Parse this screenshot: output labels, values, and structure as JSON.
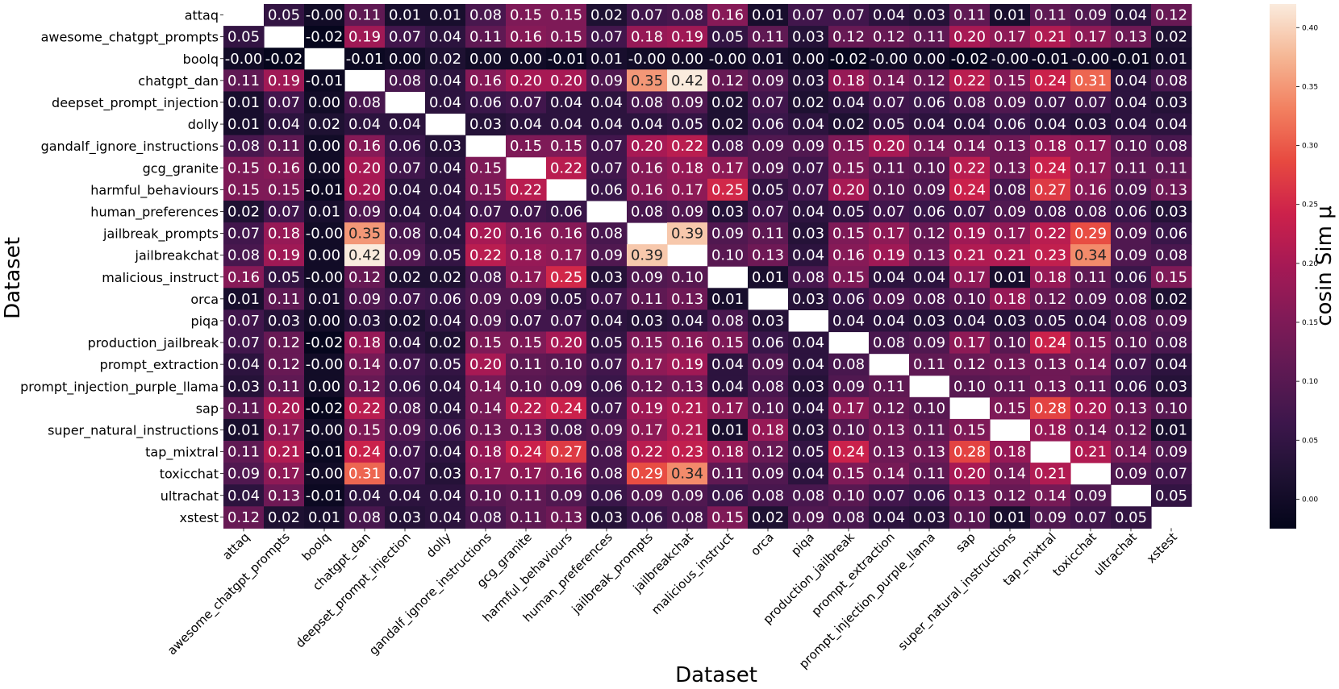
{
  "chart_data": {
    "type": "heatmap",
    "xlabel": "Dataset",
    "ylabel": "Dataset",
    "colorbar_label": "cosin Sim μ",
    "colorbar_range": [
      -0.025,
      0.42
    ],
    "colorbar_ticks": [
      "0.00",
      "0.05",
      "0.10",
      "0.15",
      "0.20",
      "0.25",
      "0.30",
      "0.35",
      "0.40"
    ],
    "colorbar_tick_values": [
      0.0,
      0.05,
      0.1,
      0.15,
      0.2,
      0.25,
      0.3,
      0.35,
      0.4
    ],
    "colormap": "rocket",
    "labels": [
      "attaq",
      "awesome_chatgpt_prompts",
      "boolq",
      "chatgpt_dan",
      "deepset_prompt_injection",
      "dolly",
      "gandalf_ignore_instructions",
      "gcg_granite",
      "harmful_behaviours",
      "human_preferences",
      "jailbreak_prompts",
      "jailbreakchat",
      "malicious_instruct",
      "orca",
      "piqa",
      "production_jailbreak",
      "prompt_extraction",
      "prompt_injection_purple_llama",
      "sap",
      "super_natural_instructions",
      "tap_mixtral",
      "toxicchat",
      "ultrachat",
      "xstest"
    ],
    "matrix": [
      [
        "",
        "0.05",
        "-0.00",
        "0.11",
        "0.01",
        "0.01",
        "0.08",
        "0.15",
        "0.15",
        "0.02",
        "0.07",
        "0.08",
        "0.16",
        "0.01",
        "0.07",
        "0.07",
        "0.04",
        "0.03",
        "0.11",
        "0.01",
        "0.11",
        "0.09",
        "0.04",
        "0.12"
      ],
      [
        "0.05",
        "",
        "-0.02",
        "0.19",
        "0.07",
        "0.04",
        "0.11",
        "0.16",
        "0.15",
        "0.07",
        "0.18",
        "0.19",
        "0.05",
        "0.11",
        "0.03",
        "0.12",
        "0.12",
        "0.11",
        "0.20",
        "0.17",
        "0.21",
        "0.17",
        "0.13",
        "0.02"
      ],
      [
        "-0.00",
        "-0.02",
        "",
        "-0.01",
        "0.00",
        "0.02",
        "0.00",
        "0.00",
        "-0.01",
        "0.01",
        "-0.00",
        "0.00",
        "-0.00",
        "0.01",
        "0.00",
        "-0.02",
        "-0.00",
        "0.00",
        "-0.02",
        "-0.00",
        "-0.01",
        "-0.00",
        "-0.01",
        "0.01"
      ],
      [
        "0.11",
        "0.19",
        "-0.01",
        "",
        "0.08",
        "0.04",
        "0.16",
        "0.20",
        "0.20",
        "0.09",
        "0.35",
        "0.42",
        "0.12",
        "0.09",
        "0.03",
        "0.18",
        "0.14",
        "0.12",
        "0.22",
        "0.15",
        "0.24",
        "0.31",
        "0.04",
        "0.08"
      ],
      [
        "0.01",
        "0.07",
        "0.00",
        "0.08",
        "",
        "0.04",
        "0.06",
        "0.07",
        "0.04",
        "0.04",
        "0.08",
        "0.09",
        "0.02",
        "0.07",
        "0.02",
        "0.04",
        "0.07",
        "0.06",
        "0.08",
        "0.09",
        "0.07",
        "0.07",
        "0.04",
        "0.03"
      ],
      [
        "0.01",
        "0.04",
        "0.02",
        "0.04",
        "0.04",
        "",
        "0.03",
        "0.04",
        "0.04",
        "0.04",
        "0.04",
        "0.05",
        "0.02",
        "0.06",
        "0.04",
        "0.02",
        "0.05",
        "0.04",
        "0.04",
        "0.06",
        "0.04",
        "0.03",
        "0.04",
        "0.04"
      ],
      [
        "0.08",
        "0.11",
        "0.00",
        "0.16",
        "0.06",
        "0.03",
        "",
        "0.15",
        "0.15",
        "0.07",
        "0.20",
        "0.22",
        "0.08",
        "0.09",
        "0.09",
        "0.15",
        "0.20",
        "0.14",
        "0.14",
        "0.13",
        "0.18",
        "0.17",
        "0.10",
        "0.08"
      ],
      [
        "0.15",
        "0.16",
        "0.00",
        "0.20",
        "0.07",
        "0.04",
        "0.15",
        "",
        "0.22",
        "0.07",
        "0.16",
        "0.18",
        "0.17",
        "0.09",
        "0.07",
        "0.15",
        "0.11",
        "0.10",
        "0.22",
        "0.13",
        "0.24",
        "0.17",
        "0.11",
        "0.11"
      ],
      [
        "0.15",
        "0.15",
        "-0.01",
        "0.20",
        "0.04",
        "0.04",
        "0.15",
        "0.22",
        "",
        "0.06",
        "0.16",
        "0.17",
        "0.25",
        "0.05",
        "0.07",
        "0.20",
        "0.10",
        "0.09",
        "0.24",
        "0.08",
        "0.27",
        "0.16",
        "0.09",
        "0.13"
      ],
      [
        "0.02",
        "0.07",
        "0.01",
        "0.09",
        "0.04",
        "0.04",
        "0.07",
        "0.07",
        "0.06",
        "",
        "0.08",
        "0.09",
        "0.03",
        "0.07",
        "0.04",
        "0.05",
        "0.07",
        "0.06",
        "0.07",
        "0.09",
        "0.08",
        "0.08",
        "0.06",
        "0.03"
      ],
      [
        "0.07",
        "0.18",
        "-0.00",
        "0.35",
        "0.08",
        "0.04",
        "0.20",
        "0.16",
        "0.16",
        "0.08",
        "",
        "0.39",
        "0.09",
        "0.11",
        "0.03",
        "0.15",
        "0.17",
        "0.12",
        "0.19",
        "0.17",
        "0.22",
        "0.29",
        "0.09",
        "0.06"
      ],
      [
        "0.08",
        "0.19",
        "0.00",
        "0.42",
        "0.09",
        "0.05",
        "0.22",
        "0.18",
        "0.17",
        "0.09",
        "0.39",
        "",
        "0.10",
        "0.13",
        "0.04",
        "0.16",
        "0.19",
        "0.13",
        "0.21",
        "0.21",
        "0.23",
        "0.34",
        "0.09",
        "0.08"
      ],
      [
        "0.16",
        "0.05",
        "-0.00",
        "0.12",
        "0.02",
        "0.02",
        "0.08",
        "0.17",
        "0.25",
        "0.03",
        "0.09",
        "0.10",
        "",
        "0.01",
        "0.08",
        "0.15",
        "0.04",
        "0.04",
        "0.17",
        "0.01",
        "0.18",
        "0.11",
        "0.06",
        "0.15"
      ],
      [
        "0.01",
        "0.11",
        "0.01",
        "0.09",
        "0.07",
        "0.06",
        "0.09",
        "0.09",
        "0.05",
        "0.07",
        "0.11",
        "0.13",
        "0.01",
        "",
        "0.03",
        "0.06",
        "0.09",
        "0.08",
        "0.10",
        "0.18",
        "0.12",
        "0.09",
        "0.08",
        "0.02"
      ],
      [
        "0.07",
        "0.03",
        "0.00",
        "0.03",
        "0.02",
        "0.04",
        "0.09",
        "0.07",
        "0.07",
        "0.04",
        "0.03",
        "0.04",
        "0.08",
        "0.03",
        "",
        "0.04",
        "0.04",
        "0.03",
        "0.04",
        "0.03",
        "0.05",
        "0.04",
        "0.08",
        "0.09"
      ],
      [
        "0.07",
        "0.12",
        "-0.02",
        "0.18",
        "0.04",
        "0.02",
        "0.15",
        "0.15",
        "0.20",
        "0.05",
        "0.15",
        "0.16",
        "0.15",
        "0.06",
        "0.04",
        "",
        "0.08",
        "0.09",
        "0.17",
        "0.10",
        "0.24",
        "0.15",
        "0.10",
        "0.08"
      ],
      [
        "0.04",
        "0.12",
        "-0.00",
        "0.14",
        "0.07",
        "0.05",
        "0.20",
        "0.11",
        "0.10",
        "0.07",
        "0.17",
        "0.19",
        "0.04",
        "0.09",
        "0.04",
        "0.08",
        "",
        "0.11",
        "0.12",
        "0.13",
        "0.13",
        "0.14",
        "0.07",
        "0.04"
      ],
      [
        "0.03",
        "0.11",
        "0.00",
        "0.12",
        "0.06",
        "0.04",
        "0.14",
        "0.10",
        "0.09",
        "0.06",
        "0.12",
        "0.13",
        "0.04",
        "0.08",
        "0.03",
        "0.09",
        "0.11",
        "",
        "0.10",
        "0.11",
        "0.13",
        "0.11",
        "0.06",
        "0.03"
      ],
      [
        "0.11",
        "0.20",
        "-0.02",
        "0.22",
        "0.08",
        "0.04",
        "0.14",
        "0.22",
        "0.24",
        "0.07",
        "0.19",
        "0.21",
        "0.17",
        "0.10",
        "0.04",
        "0.17",
        "0.12",
        "0.10",
        "",
        "0.15",
        "0.28",
        "0.20",
        "0.13",
        "0.10"
      ],
      [
        "0.01",
        "0.17",
        "-0.00",
        "0.15",
        "0.09",
        "0.06",
        "0.13",
        "0.13",
        "0.08",
        "0.09",
        "0.17",
        "0.21",
        "0.01",
        "0.18",
        "0.03",
        "0.10",
        "0.13",
        "0.11",
        "0.15",
        "",
        "0.18",
        "0.14",
        "0.12",
        "0.01"
      ],
      [
        "0.11",
        "0.21",
        "-0.01",
        "0.24",
        "0.07",
        "0.04",
        "0.18",
        "0.24",
        "0.27",
        "0.08",
        "0.22",
        "0.23",
        "0.18",
        "0.12",
        "0.05",
        "0.24",
        "0.13",
        "0.13",
        "0.28",
        "0.18",
        "",
        "0.21",
        "0.14",
        "0.09"
      ],
      [
        "0.09",
        "0.17",
        "-0.00",
        "0.31",
        "0.07",
        "0.03",
        "0.17",
        "0.17",
        "0.16",
        "0.08",
        "0.29",
        "0.34",
        "0.11",
        "0.09",
        "0.04",
        "0.15",
        "0.14",
        "0.11",
        "0.20",
        "0.14",
        "0.21",
        "",
        "0.09",
        "0.07"
      ],
      [
        "0.04",
        "0.13",
        "-0.01",
        "0.04",
        "0.04",
        "0.04",
        "0.10",
        "0.11",
        "0.09",
        "0.06",
        "0.09",
        "0.09",
        "0.06",
        "0.08",
        "0.08",
        "0.10",
        "0.07",
        "0.06",
        "0.13",
        "0.12",
        "0.14",
        "0.09",
        "",
        "0.05"
      ],
      [
        "0.12",
        "0.02",
        "0.01",
        "0.08",
        "0.03",
        "0.04",
        "0.08",
        "0.11",
        "0.13",
        "0.03",
        "0.06",
        "0.08",
        "0.15",
        "0.02",
        "0.09",
        "0.08",
        "0.04",
        "0.03",
        "0.10",
        "0.01",
        "0.09",
        "0.07",
        "0.05",
        ""
      ]
    ]
  }
}
